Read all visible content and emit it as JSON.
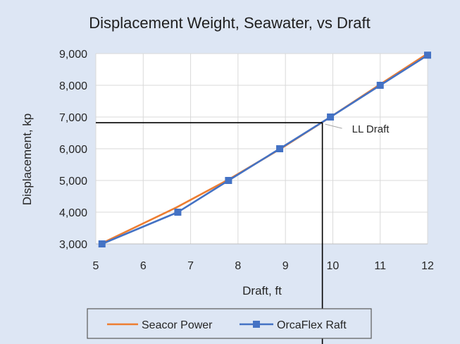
{
  "chart_data": {
    "type": "line",
    "title": "Displacement Weight, Seawater, vs Draft",
    "xlabel": "Draft, ft",
    "ylabel": "Displacement, kp",
    "xlim": [
      5,
      12
    ],
    "ylim": [
      3000,
      9000
    ],
    "x_ticks": [
      "5",
      "6",
      "7",
      "8",
      "9",
      "10",
      "11",
      "12"
    ],
    "y_ticks": [
      "3,000",
      "4,000",
      "5,000",
      "6,000",
      "7,000",
      "8,000",
      "9,000"
    ],
    "grid": true,
    "legend_position": "bottom",
    "series": [
      {
        "name": "Seacor Power",
        "color": "#ed7d31",
        "marker": "none",
        "points": [
          [
            5.1,
            3000
          ],
          [
            6.7,
            4150
          ],
          [
            7.8,
            5030
          ],
          [
            8.9,
            6000
          ],
          [
            9.95,
            7000
          ],
          [
            11.0,
            8030
          ],
          [
            12.0,
            9000
          ]
        ]
      },
      {
        "name": "OrcaFlex Raft",
        "color": "#4472c4",
        "marker": "square",
        "points": [
          [
            5.13,
            3000
          ],
          [
            6.73,
            4000
          ],
          [
            7.8,
            5000
          ],
          [
            8.88,
            6000
          ],
          [
            9.95,
            7000
          ],
          [
            11.0,
            8000
          ],
          [
            12.0,
            8950
          ]
        ]
      }
    ],
    "annotation": {
      "label": "LL Draft",
      "x": 9.78,
      "y": 6820
    }
  }
}
